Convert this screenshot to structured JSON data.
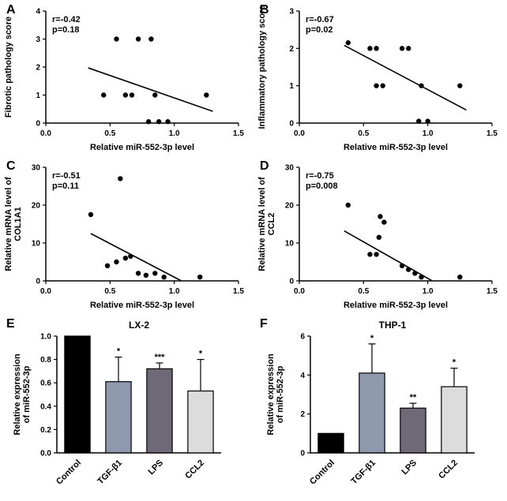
{
  "chart_data": [
    {
      "panel": "A",
      "type": "scatter",
      "annotation": [
        "r=-0.42",
        "p=0.18"
      ],
      "xlabel": "Relative miR-552-3p level",
      "ylabel_lines": [
        "Fibrotic pathology score"
      ],
      "xlim": [
        0,
        1.5
      ],
      "ylim": [
        0,
        4
      ],
      "xticks": [
        0,
        0.5,
        1.0,
        1.5
      ],
      "xtick_labels": [
        "0.0",
        "0.5",
        "1.0",
        "1.5"
      ],
      "yticks": [
        0,
        1,
        2,
        3,
        4
      ],
      "ytick_labels": [
        "0",
        "1",
        "2",
        "3",
        "4"
      ],
      "points": [
        [
          0.55,
          3
        ],
        [
          0.72,
          3
        ],
        [
          0.82,
          3
        ],
        [
          0.45,
          1
        ],
        [
          0.62,
          1
        ],
        [
          0.67,
          1
        ],
        [
          0.85,
          1
        ],
        [
          1.25,
          1
        ],
        [
          0.8,
          0.05
        ],
        [
          0.88,
          0.05
        ],
        [
          0.95,
          0.05
        ]
      ],
      "trend_line": {
        "x1": 0.33,
        "y1": 1.97,
        "x2": 1.3,
        "y2": 0.42
      }
    },
    {
      "panel": "B",
      "type": "scatter",
      "annotation": [
        "r=-0.67",
        "p=0.02"
      ],
      "xlabel": "Relative miR-552-3p level",
      "ylabel_lines": [
        "Inflammatory pathology score"
      ],
      "xlim": [
        0,
        1.5
      ],
      "ylim": [
        0,
        3
      ],
      "xticks": [
        0,
        0.5,
        1.0,
        1.5
      ],
      "xtick_labels": [
        "0.0",
        "0.5",
        "1.0",
        "1.5"
      ],
      "yticks": [
        0,
        1,
        2,
        3
      ],
      "ytick_labels": [
        "0",
        "1",
        "2",
        "3"
      ],
      "points": [
        [
          0.38,
          2.15
        ],
        [
          0.55,
          2
        ],
        [
          0.6,
          2
        ],
        [
          0.8,
          2
        ],
        [
          0.85,
          2
        ],
        [
          0.6,
          1
        ],
        [
          0.65,
          1
        ],
        [
          0.95,
          1
        ],
        [
          1.25,
          1
        ],
        [
          0.93,
          0.05
        ],
        [
          1.0,
          0.05
        ]
      ],
      "trend_line": {
        "x1": 0.35,
        "y1": 2.08,
        "x2": 1.3,
        "y2": 0.35
      }
    },
    {
      "panel": "C",
      "type": "scatter",
      "annotation": [
        "r=-0.51",
        "p=0.11"
      ],
      "xlabel": "Relative miR-552-3p level",
      "ylabel_lines": [
        "Relative mRNA level of",
        "COL1A1"
      ],
      "xlim": [
        0,
        1.5
      ],
      "ylim": [
        0,
        30
      ],
      "xticks": [
        0,
        0.5,
        1.0,
        1.5
      ],
      "xtick_labels": [
        "0.0",
        "0.5",
        "1.0",
        "1.5"
      ],
      "yticks": [
        0,
        10,
        20,
        30
      ],
      "ytick_labels": [
        "0",
        "10",
        "20",
        "30"
      ],
      "points": [
        [
          0.35,
          17.5
        ],
        [
          0.58,
          27
        ],
        [
          0.48,
          4
        ],
        [
          0.55,
          5
        ],
        [
          0.62,
          6
        ],
        [
          0.66,
          6.5
        ],
        [
          0.72,
          2
        ],
        [
          0.78,
          1.5
        ],
        [
          0.85,
          2
        ],
        [
          0.92,
          1
        ],
        [
          1.2,
          1
        ]
      ],
      "trend_line": {
        "x1": 0.35,
        "y1": 12.5,
        "x2": 1.05,
        "y2": 0.1
      }
    },
    {
      "panel": "D",
      "type": "scatter",
      "annotation": [
        "r=-0.75",
        "p=0.008"
      ],
      "xlabel": "Relative miR-552-3p level",
      "ylabel_lines": [
        "Relative mRNA level of",
        "CCL2"
      ],
      "xlim": [
        0,
        1.5
      ],
      "ylim": [
        0,
        30
      ],
      "xticks": [
        0,
        0.5,
        1.0,
        1.5
      ],
      "xtick_labels": [
        "0.0",
        "0.5",
        "1.0",
        "1.5"
      ],
      "yticks": [
        0,
        10,
        20,
        30
      ],
      "ytick_labels": [
        "0",
        "10",
        "20",
        "30"
      ],
      "points": [
        [
          0.38,
          20
        ],
        [
          0.55,
          7
        ],
        [
          0.6,
          7
        ],
        [
          0.62,
          11.5
        ],
        [
          0.63,
          17
        ],
        [
          0.66,
          15.5
        ],
        [
          0.8,
          4
        ],
        [
          0.85,
          3
        ],
        [
          0.9,
          2
        ],
        [
          0.95,
          1
        ],
        [
          1.25,
          1
        ]
      ],
      "trend_line": {
        "x1": 0.35,
        "y1": 13.2,
        "x2": 1.03,
        "y2": 0.1
      }
    },
    {
      "panel": "E",
      "type": "bar",
      "title": "LX-2",
      "ylabel_lines": [
        "Relative expression",
        "of miR-552-3p"
      ],
      "categories": [
        "Control",
        "TGF-β1",
        "LPS",
        "CCL2"
      ],
      "values": [
        1.0,
        0.61,
        0.72,
        0.53
      ],
      "errors": [
        0,
        0.21,
        0.05,
        0.27
      ],
      "significance": [
        "",
        "*",
        "***",
        "*"
      ],
      "bar_colors": [
        "#000000",
        "#8e99ad",
        "#6f6876",
        "#dcdcdc"
      ],
      "ylim": [
        0,
        1.0
      ],
      "yticks": [
        0,
        0.2,
        0.4,
        0.6,
        0.8,
        1.0
      ],
      "ytick_labels": [
        "0.0",
        "0.2",
        "0.4",
        "0.6",
        "0.8",
        "1.0"
      ]
    },
    {
      "panel": "F",
      "type": "bar",
      "title": "THP-1",
      "ylabel_lines": [
        "Relative expression",
        "of miR-552-3p"
      ],
      "categories": [
        "Control",
        "TGF-β1",
        "LPS",
        "CCL2"
      ],
      "values": [
        1.0,
        4.1,
        2.3,
        3.4
      ],
      "errors": [
        0,
        1.5,
        0.25,
        0.95
      ],
      "significance": [
        "",
        "*",
        "**",
        "*"
      ],
      "bar_colors": [
        "#000000",
        "#8e99ad",
        "#6f6876",
        "#dcdcdc"
      ],
      "ylim": [
        0,
        6
      ],
      "yticks": [
        0,
        2,
        4,
        6
      ],
      "ytick_labels": [
        "0",
        "2",
        "4",
        "6"
      ]
    }
  ]
}
